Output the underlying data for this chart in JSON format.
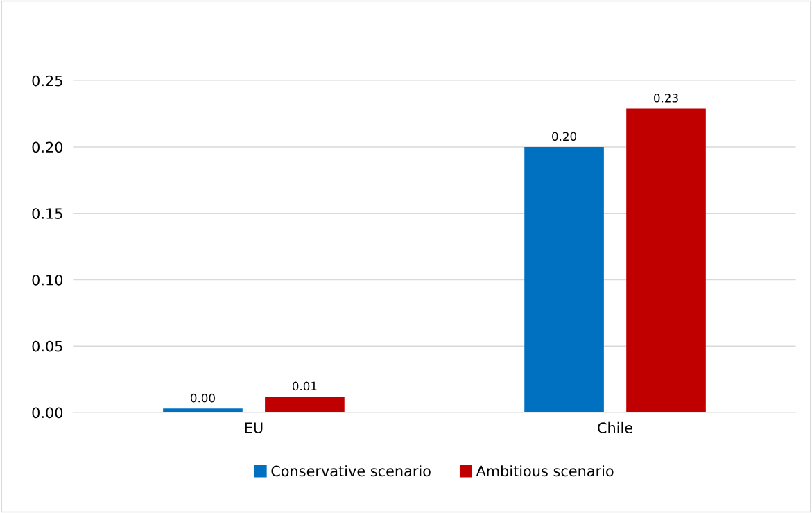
{
  "chart_data": {
    "type": "bar",
    "categories": [
      "EU",
      "Chile"
    ],
    "series": [
      {
        "name": "Conservative scenario",
        "color": "#0070c0",
        "values": [
          0.003,
          0.2
        ],
        "value_labels": [
          "0.00",
          "0.20"
        ]
      },
      {
        "name": "Ambitious scenario",
        "color": "#c00000",
        "values": [
          0.012,
          0.229
        ],
        "value_labels": [
          "0.01",
          "0.23"
        ]
      }
    ],
    "ylim": [
      0,
      0.25
    ],
    "yticks": [
      {
        "value": 0,
        "label": "0.00"
      },
      {
        "value": 0.05,
        "label": "0.05"
      },
      {
        "value": 0.1,
        "label": "0.10"
      },
      {
        "value": 0.15,
        "label": "0.15"
      },
      {
        "value": 0.2,
        "label": "0.20"
      },
      {
        "value": 0.25,
        "label": "0.25"
      }
    ],
    "grid": "y",
    "legend": "bottom"
  }
}
